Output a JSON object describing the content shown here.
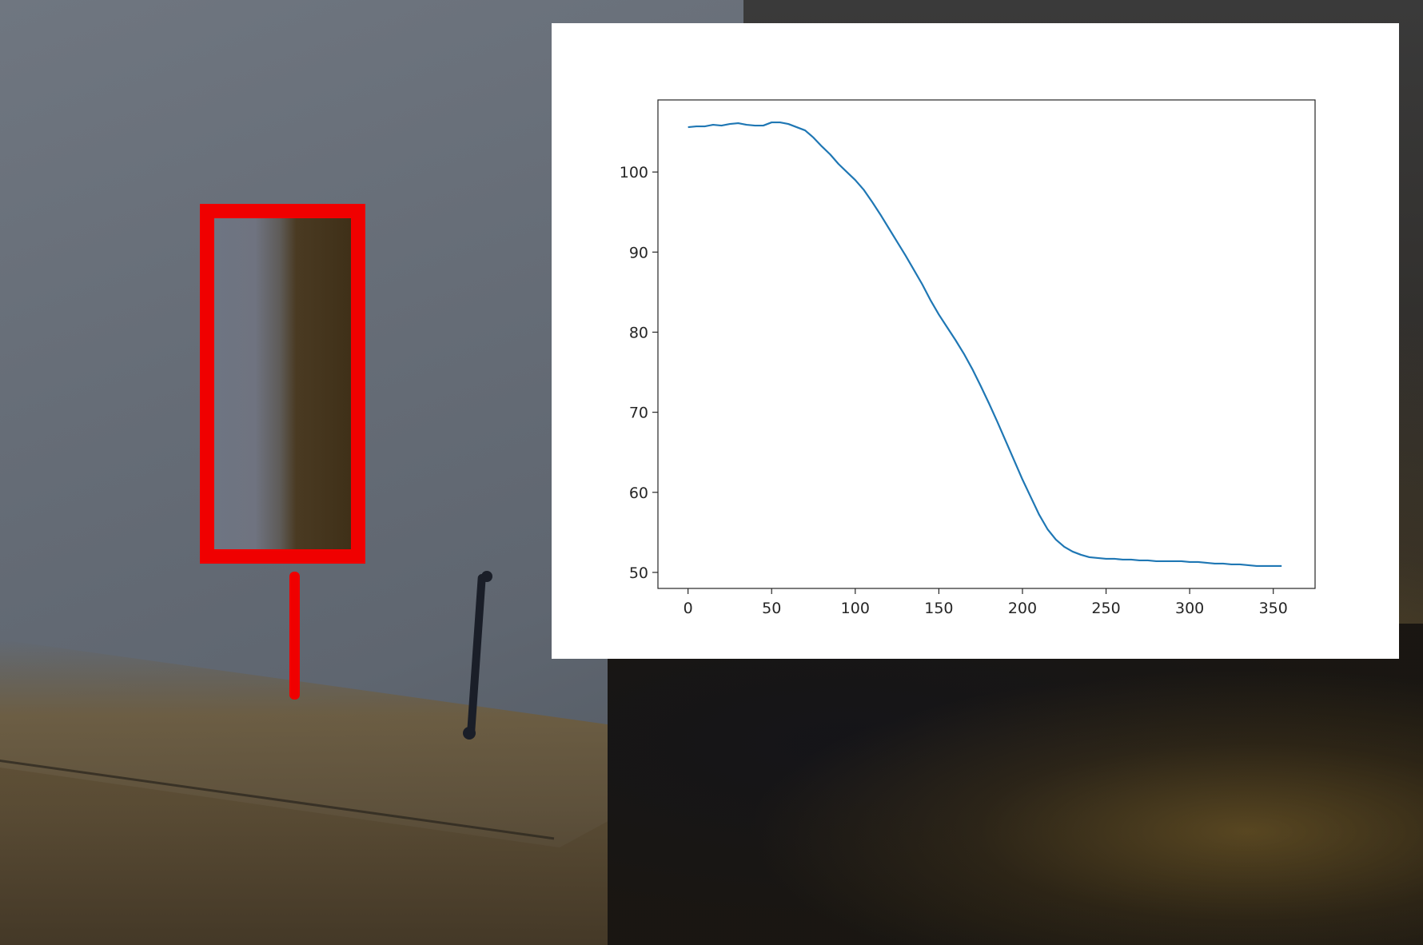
{
  "chart_data": {
    "type": "line",
    "title": "",
    "xlabel": "",
    "ylabel": "",
    "xlim": [
      -18,
      375
    ],
    "ylim": [
      48,
      109
    ],
    "xticks": [
      0,
      50,
      100,
      150,
      200,
      250,
      300,
      350
    ],
    "yticks": [
      50,
      60,
      70,
      80,
      90,
      100
    ],
    "grid": false,
    "legend": "none",
    "series": [
      {
        "color": "#1f77b4",
        "x": [
          0,
          5,
          10,
          15,
          20,
          25,
          30,
          35,
          40,
          45,
          50,
          55,
          60,
          65,
          70,
          75,
          80,
          85,
          90,
          95,
          100,
          105,
          110,
          115,
          120,
          125,
          130,
          135,
          140,
          145,
          150,
          155,
          160,
          165,
          170,
          175,
          180,
          185,
          190,
          195,
          200,
          205,
          210,
          215,
          220,
          225,
          230,
          235,
          240,
          245,
          250,
          255,
          260,
          265,
          270,
          275,
          280,
          285,
          290,
          295,
          300,
          305,
          310,
          315,
          320,
          325,
          330,
          335,
          340,
          345,
          350,
          355
        ],
        "y": [
          105.6,
          105.7,
          105.7,
          105.9,
          105.8,
          106.0,
          106.1,
          105.9,
          105.8,
          105.8,
          106.2,
          106.2,
          106.0,
          105.6,
          105.2,
          104.3,
          103.2,
          102.2,
          101.0,
          100.0,
          99.0,
          97.8,
          96.3,
          94.7,
          93.0,
          91.3,
          89.6,
          87.8,
          86.0,
          84.0,
          82.2,
          80.6,
          79.0,
          77.3,
          75.4,
          73.3,
          71.1,
          68.8,
          66.4,
          64.0,
          61.6,
          59.4,
          57.2,
          55.4,
          54.1,
          53.2,
          52.6,
          52.2,
          51.9,
          51.8,
          51.7,
          51.7,
          51.6,
          51.6,
          51.5,
          51.5,
          51.4,
          51.4,
          51.4,
          51.4,
          51.3,
          51.3,
          51.2,
          51.1,
          51.1,
          51.0,
          51.0,
          50.9,
          50.8,
          50.8,
          50.8,
          50.8
        ]
      }
    ]
  }
}
